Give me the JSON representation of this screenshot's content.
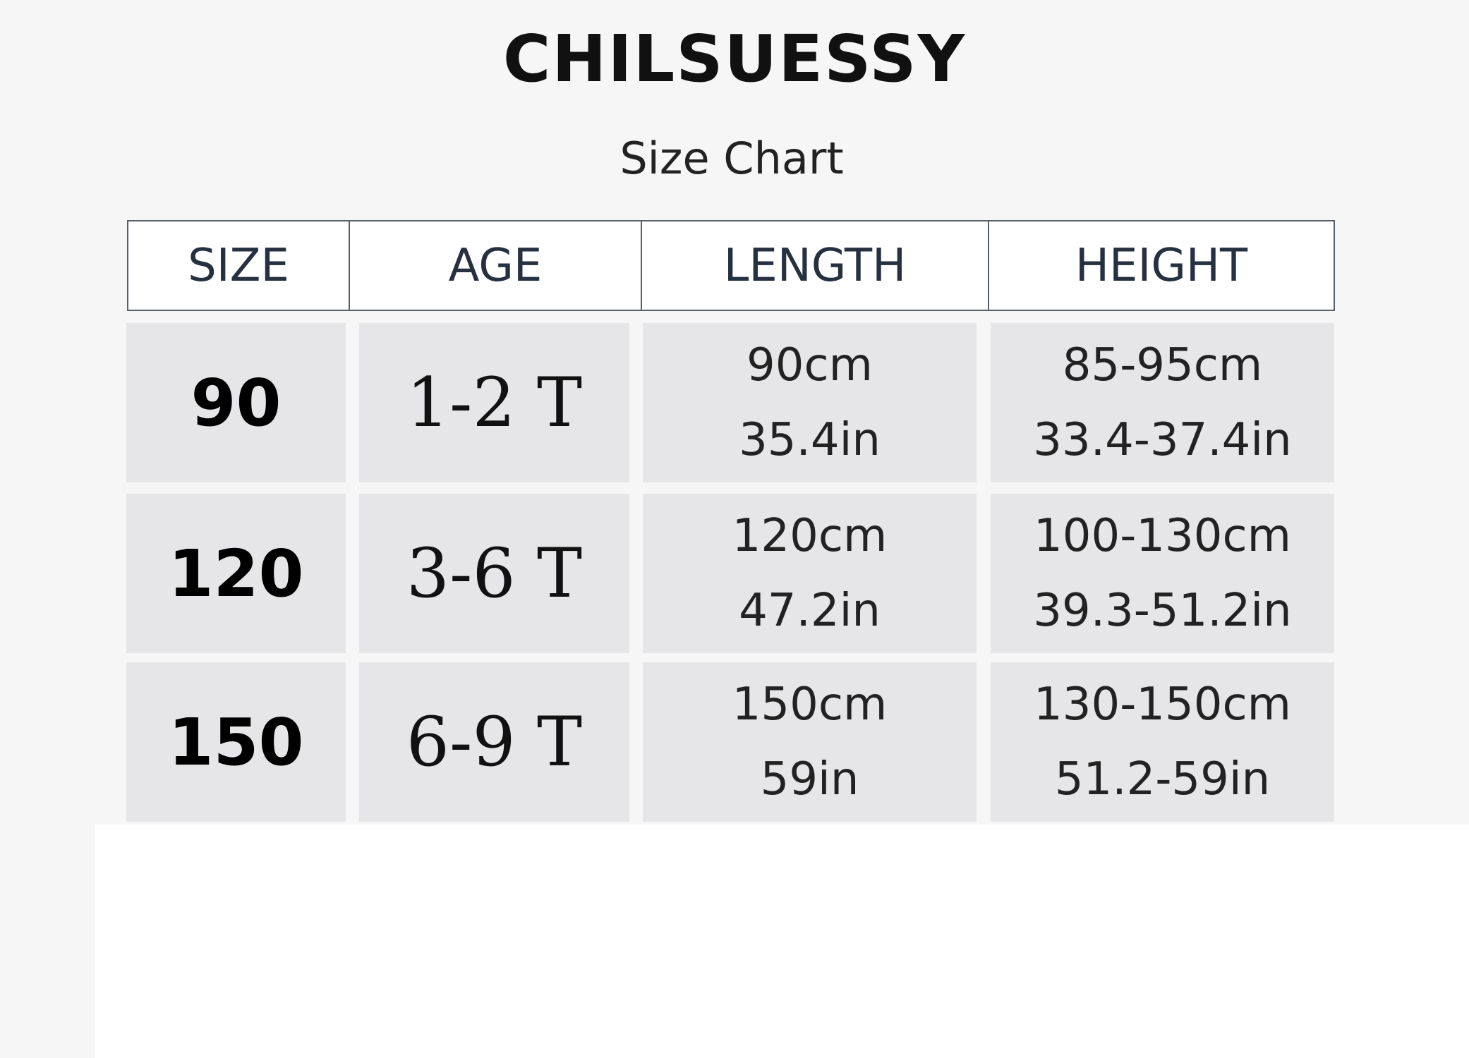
{
  "brand": "CHILSUESSY",
  "subtitle": "Size Chart",
  "columns": [
    "SIZE",
    "AGE",
    "LENGTH",
    "HEIGHT"
  ],
  "rows": [
    {
      "size": "90",
      "age": "1-2 T",
      "length_cm": "90cm",
      "length_in": "35.4in",
      "height_cm": "85-95cm",
      "height_in": "33.4-37.4in"
    },
    {
      "size": "120",
      "age": "3-6 T",
      "length_cm": "120cm",
      "length_in": "47.2in",
      "height_cm": "100-130cm",
      "height_in": "39.3-51.2in"
    },
    {
      "size": "150",
      "age": "6-9 T",
      "length_cm": "150cm",
      "length_in": "59in",
      "height_cm": "130-150cm",
      "height_in": "51.2-59in"
    }
  ]
}
